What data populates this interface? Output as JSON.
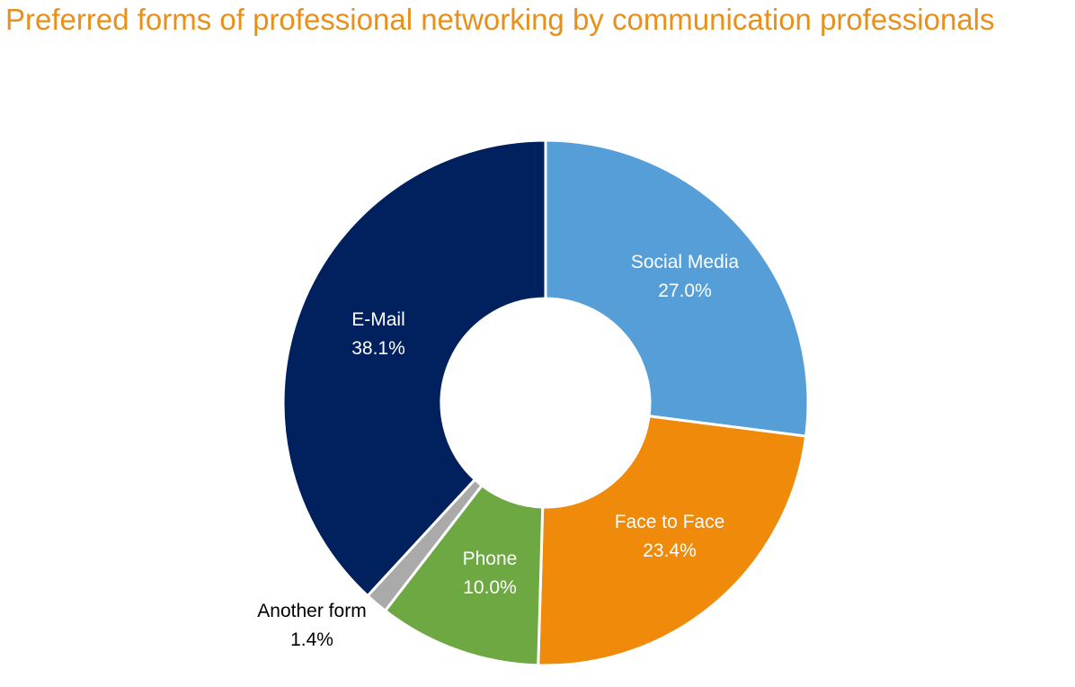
{
  "chart_data": {
    "type": "pie",
    "donut": true,
    "title": "Preferred forms of professional networking by communication professionals",
    "categories": [
      "Social Media",
      "Face to Face",
      "Phone",
      "Another form",
      "E-Mail"
    ],
    "values": [
      27.0,
      23.4,
      10.0,
      1.4,
      38.1
    ],
    "value_labels": [
      "27.0%",
      "23.4%",
      "10.0%",
      "1.4%",
      "38.1%"
    ],
    "colors": [
      "#559ED8",
      "#F08A0B",
      "#6DA843",
      "#AAAAAA",
      "#00215D"
    ],
    "label_colors": [
      "#ffffff",
      "#ffffff",
      "#ffffff",
      "#000000",
      "#ffffff"
    ],
    "legend": "none"
  },
  "colors": {
    "title": "#E8901A"
  }
}
